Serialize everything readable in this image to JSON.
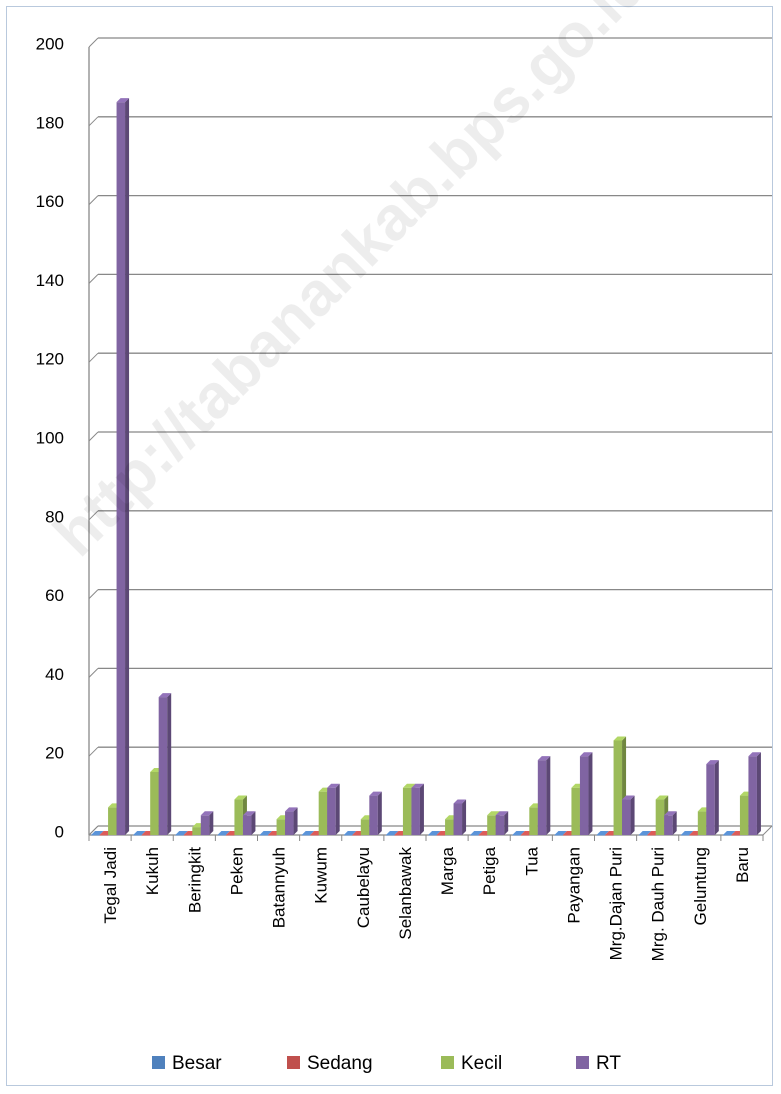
{
  "chart_data": {
    "type": "bar",
    "title": "",
    "xlabel": "",
    "ylabel": "",
    "ylim": [
      0,
      200
    ],
    "yticks": [
      0,
      20,
      40,
      60,
      80,
      100,
      120,
      140,
      160,
      180,
      200
    ],
    "grid": true,
    "legend_position": "bottom",
    "categories": [
      "Tegal Jadi",
      "Kukuh",
      "Beringkit",
      "Peken",
      "Batannyuh",
      "Kuwum",
      "Caubelayu",
      "Selanbawak",
      "Marga",
      "Petiga",
      "Tua",
      "Payangan",
      "Mrg.Dajan Puri",
      "Mrg. Dauh Puri",
      "Geluntung",
      "Baru"
    ],
    "series": [
      {
        "name": "Besar",
        "color": "#4f81bd",
        "values": [
          0,
          0,
          0,
          0,
          0,
          0,
          0,
          0,
          0,
          0,
          0,
          0,
          0,
          0,
          0,
          0
        ]
      },
      {
        "name": "Sedang",
        "color": "#c0504d",
        "values": [
          0,
          0,
          0,
          0,
          0,
          0,
          0,
          0,
          0,
          0,
          0,
          0,
          0,
          0,
          0,
          0
        ]
      },
      {
        "name": "Kecil",
        "color": "#9bbb59",
        "values": [
          7,
          16,
          2,
          9,
          4,
          11,
          4,
          12,
          4,
          5,
          7,
          12,
          24,
          9,
          6,
          10
        ]
      },
      {
        "name": "RT",
        "color": "#8064a2",
        "values": [
          186,
          35,
          5,
          5,
          6,
          12,
          10,
          12,
          8,
          5,
          19,
          20,
          9,
          5,
          18,
          20
        ]
      }
    ]
  },
  "watermark": "http://tabanankab.bps.go.id"
}
